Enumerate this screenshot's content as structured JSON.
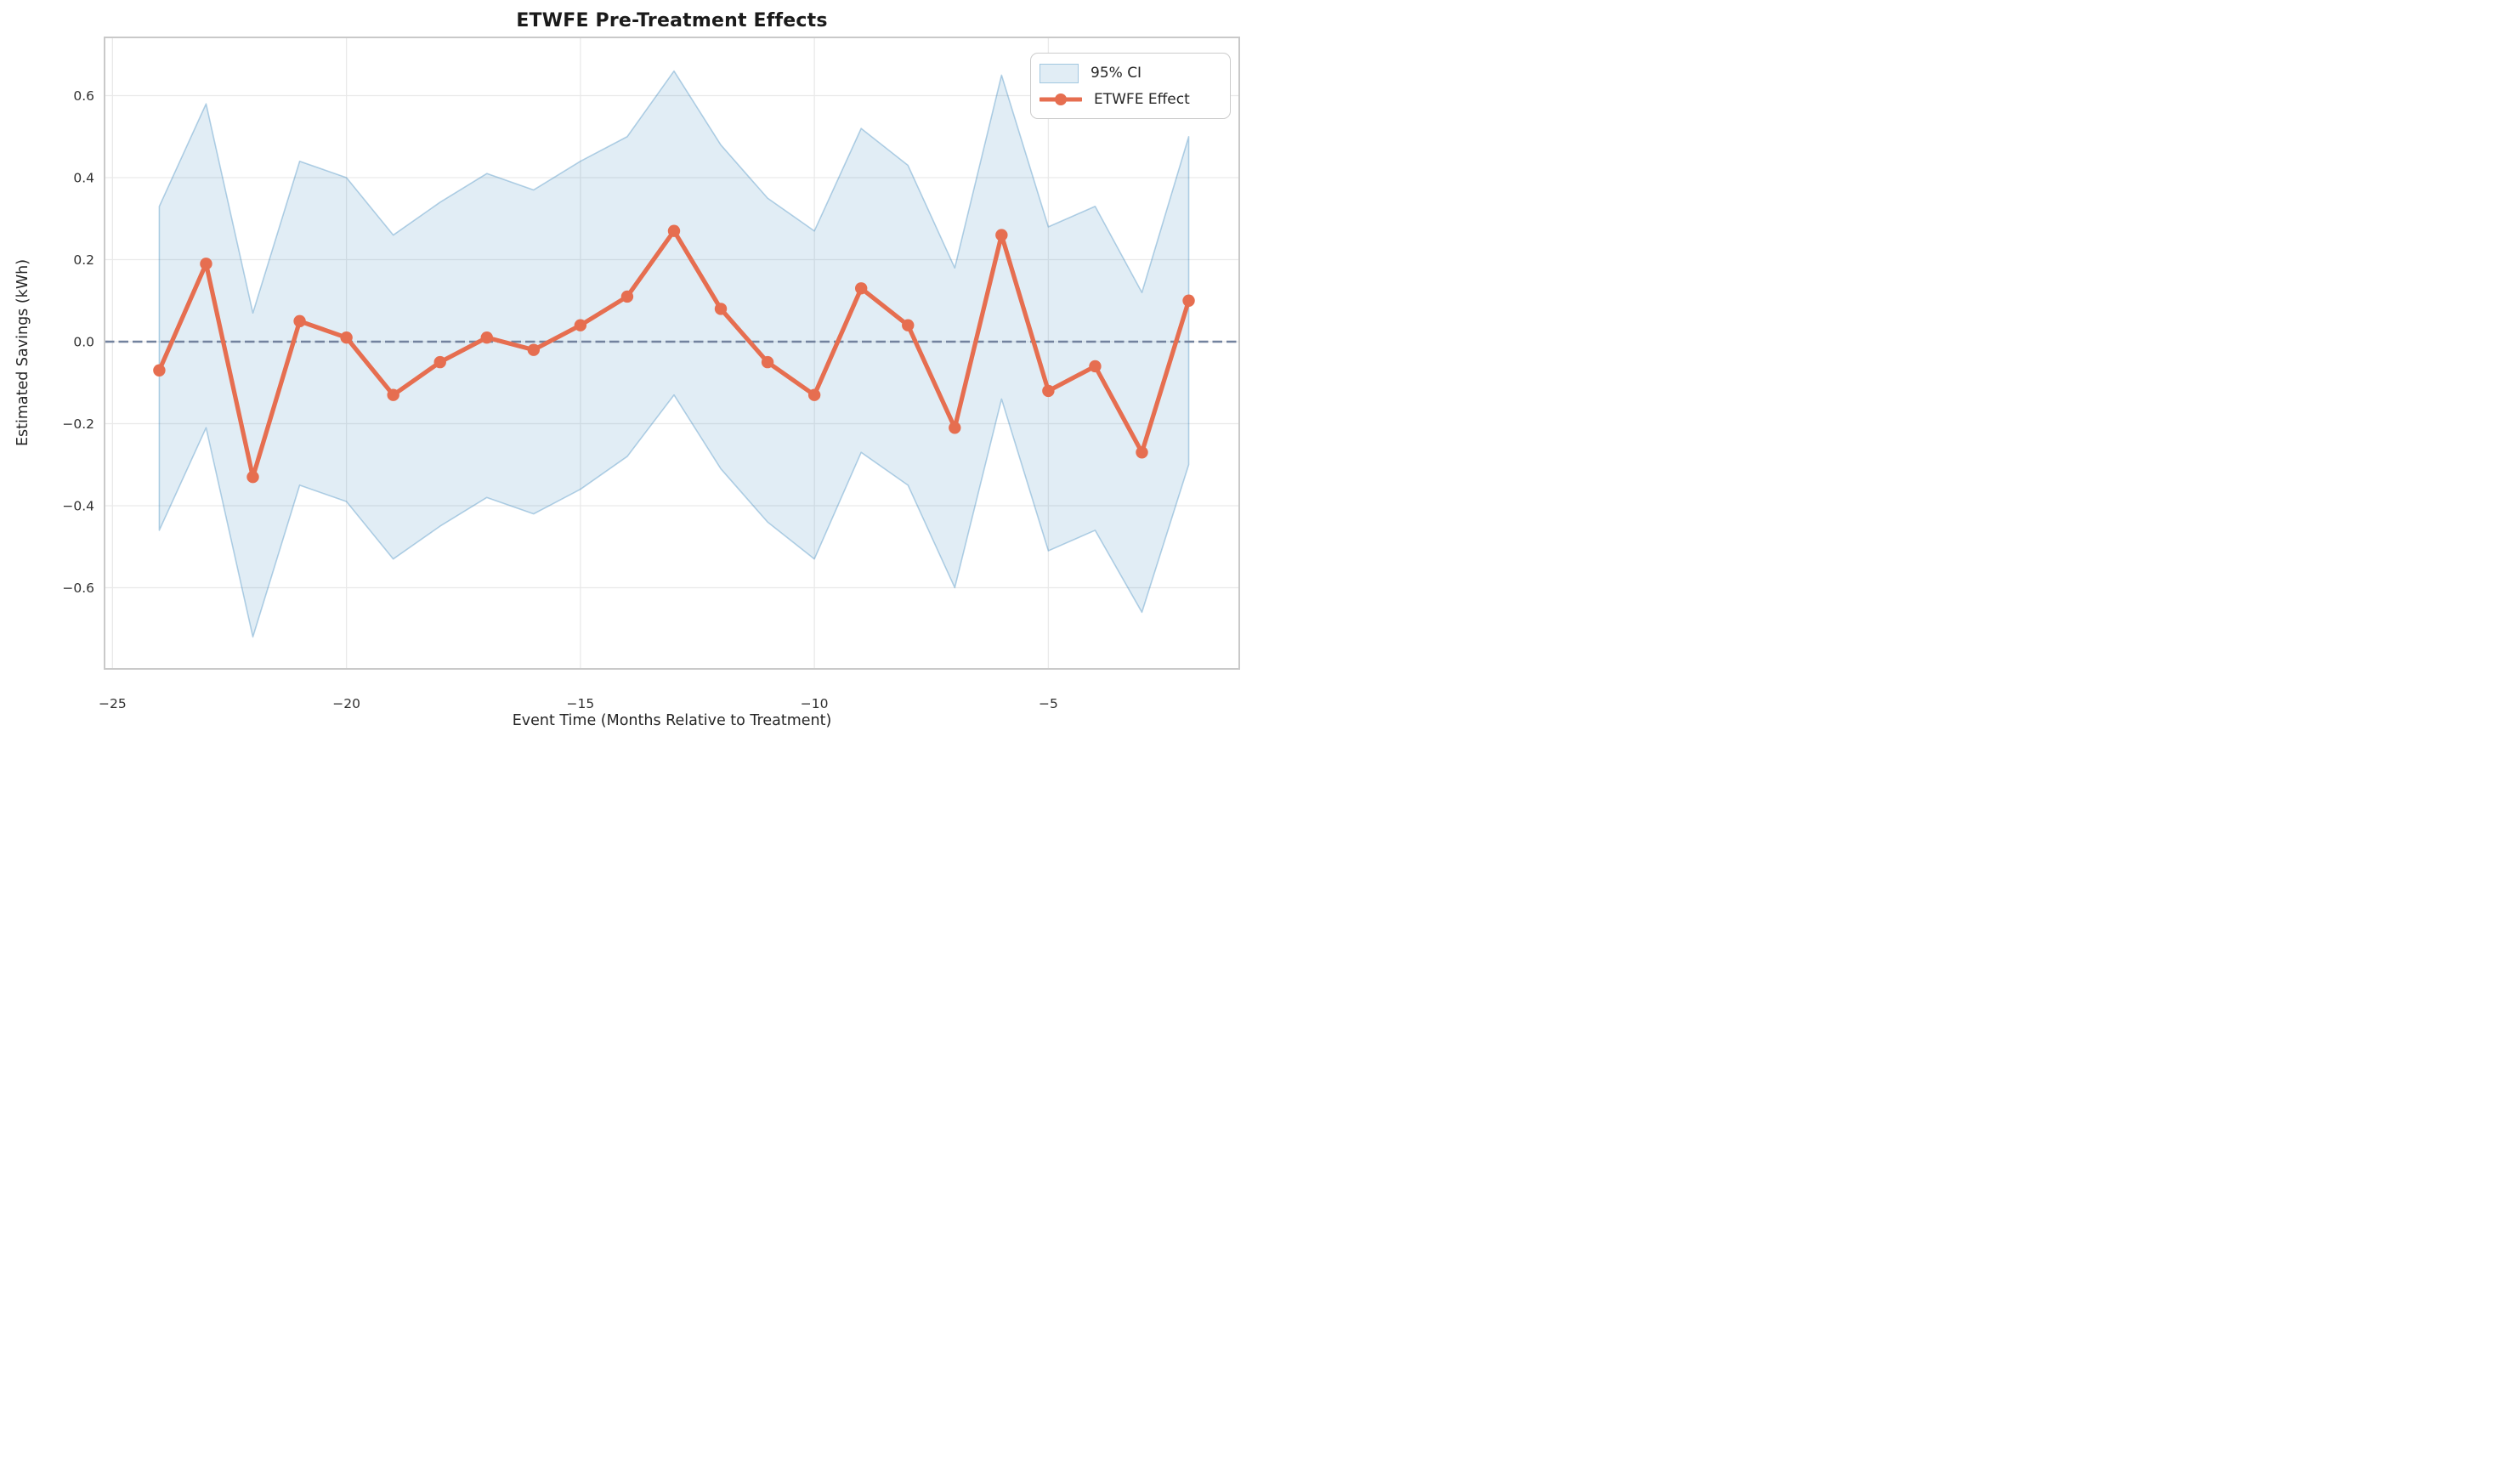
{
  "title": "ETWFE Pre-Treatment Effects",
  "axes": {
    "xlabel": "Event Time (Months Relative to Treatment)",
    "ylabel": "Estimated Savings (kWh)",
    "x_ticks": [
      -25,
      -20,
      -15,
      -10,
      -5
    ],
    "x_tick_labels": [
      "−25",
      "−20",
      "−15",
      "−10",
      "−5"
    ],
    "y_ticks": [
      0.6,
      0.4,
      0.2,
      0.0,
      -0.2,
      -0.4,
      -0.6
    ],
    "y_tick_labels": [
      "0.6",
      "0.4",
      "0.2",
      "0.0",
      "−0.2",
      "−0.4",
      "−0.6"
    ],
    "xlim": [
      -25.17,
      -0.92
    ],
    "ylim": [
      -0.798,
      0.742
    ],
    "grid": true,
    "zero_reference_line": 0.0
  },
  "legend": {
    "position": "upper right",
    "items": [
      {
        "label": "95% CI",
        "type": "patch"
      },
      {
        "label": "ETWFE Effect",
        "type": "line-marker"
      }
    ]
  },
  "colors": {
    "effect_line": "#e66e50",
    "marker": "#e66e50",
    "ci_fill_base": "#1f77b4",
    "ci_fill_opacity": 0.135,
    "ci_edge_opacity": 0.32,
    "zero_line": "#72829e",
    "grid": "#e9e9e9",
    "spine": "#c9c9c9",
    "tick_text": "#303030",
    "background": "#ffffff"
  },
  "chart_data": {
    "type": "line",
    "title": "ETWFE Pre-Treatment Effects",
    "xlabel": "Event Time (Months Relative to Treatment)",
    "ylabel": "Estimated Savings (kWh)",
    "x": [
      -24,
      -23,
      -22,
      -21,
      -20,
      -19,
      -18,
      -17,
      -16,
      -15,
      -14,
      -13,
      -12,
      -11,
      -10,
      -9,
      -8,
      -7,
      -6,
      -5,
      -4,
      -3,
      -2
    ],
    "series": [
      {
        "name": "ETWFE Effect",
        "values": [
          -0.07,
          0.19,
          -0.33,
          0.05,
          0.01,
          -0.13,
          -0.05,
          0.01,
          -0.02,
          0.04,
          0.11,
          0.27,
          0.08,
          -0.05,
          -0.13,
          0.13,
          0.04,
          -0.21,
          0.26,
          -0.12,
          -0.06,
          -0.27,
          0.1
        ]
      },
      {
        "name": "95% CI upper",
        "values": [
          0.33,
          0.58,
          0.07,
          0.44,
          0.4,
          0.26,
          0.34,
          0.41,
          0.37,
          0.44,
          0.5,
          0.66,
          0.48,
          0.35,
          0.27,
          0.52,
          0.43,
          0.18,
          0.65,
          0.28,
          0.33,
          0.12,
          0.5
        ]
      },
      {
        "name": "95% CI lower",
        "values": [
          -0.46,
          -0.21,
          -0.72,
          -0.35,
          -0.39,
          -0.53,
          -0.45,
          -0.38,
          -0.42,
          -0.36,
          -0.28,
          -0.13,
          -0.31,
          -0.44,
          -0.53,
          -0.27,
          -0.35,
          -0.6,
          -0.14,
          -0.51,
          -0.46,
          -0.66,
          -0.3
        ]
      }
    ],
    "ylim": [
      -0.798,
      0.742
    ],
    "xlim": [
      -25.17,
      -0.92
    ],
    "grid": true,
    "legend_position": "upper right"
  }
}
